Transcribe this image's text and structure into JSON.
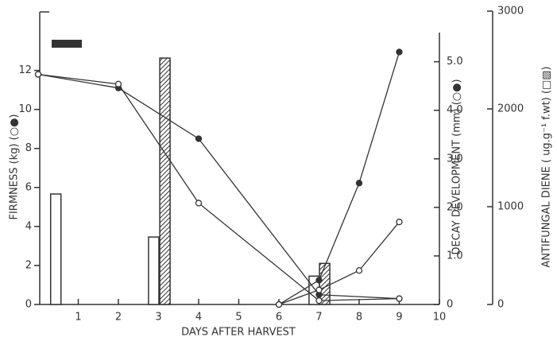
{
  "chart_data": {
    "type": "combo",
    "xlabel": "DAYS AFTER HARVEST",
    "ylabel": "FIRMNESS (kg) (○●)",
    "y2label": "DECAY DEVELOPMENT (mm) (○●)",
    "y3label": "ANTIFUNGAL DIENE ( ug.g⁻¹ f.wt) (□▨)",
    "xlim": [
      0,
      10
    ],
    "xticks": [
      1,
      2,
      3,
      4,
      5,
      6,
      7,
      8,
      9,
      10
    ],
    "ylim": [
      0,
      15
    ],
    "yticks": [
      0,
      2,
      4,
      6,
      8,
      10,
      12
    ],
    "y2lim": [
      0,
      5.6
    ],
    "y2ticks": [
      0,
      {
        "value": 1,
        "label": "1.0"
      },
      {
        "value": 2,
        "label": "2.0"
      },
      {
        "value": 3,
        "label": "3.0"
      },
      {
        "value": 4,
        "label": "4.0"
      },
      {
        "value": 5,
        "label": "5.0"
      }
    ],
    "y3lim": [
      0,
      3000
    ],
    "y3ticks": [
      0,
      1000,
      2000,
      3000
    ],
    "series": [
      {
        "type": "line",
        "axis": "y",
        "marker": "filled",
        "color": "#333",
        "x": [
          0,
          2,
          4,
          7,
          9
        ],
        "values": [
          11.8,
          11.1,
          8.5,
          0.5,
          0.3
        ]
      },
      {
        "type": "line",
        "axis": "y",
        "marker": "open",
        "color": "#333",
        "x": [
          0,
          2,
          4,
          7,
          9
        ],
        "values": [
          11.8,
          11.3,
          5.2,
          0.2,
          0.3
        ]
      },
      {
        "type": "line",
        "axis": "y2",
        "marker": "filled",
        "color": "#333",
        "x": [
          6,
          7,
          8,
          9
        ],
        "values": [
          0,
          0.5,
          2.5,
          5.2
        ]
      },
      {
        "type": "line",
        "axis": "y2",
        "marker": "open",
        "color": "#333",
        "x": [
          6,
          7,
          8,
          9
        ],
        "values": [
          0,
          0.3,
          0.7,
          1.7
        ]
      },
      {
        "type": "bar",
        "axis": "y3",
        "fill": "open",
        "color": "#333",
        "x": [
          0.44,
          2.88,
          6.88
        ],
        "values": [
          1130,
          690,
          290
        ]
      },
      {
        "type": "bar",
        "axis": "y3",
        "fill": "hatched",
        "color": "#333",
        "x": [
          3.16,
          7.14
        ],
        "values": [
          2520,
          420
        ]
      }
    ]
  }
}
